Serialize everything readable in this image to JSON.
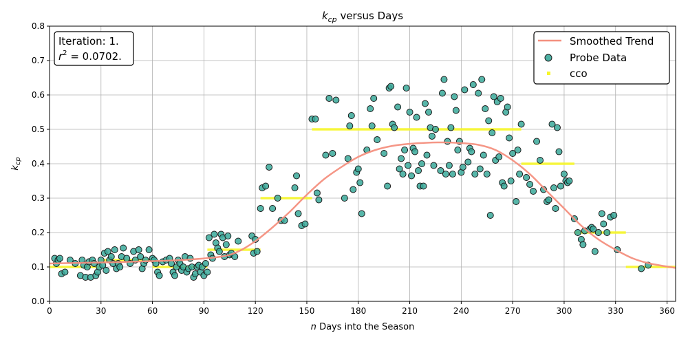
{
  "chart_data": {
    "type": "scatter",
    "title": "versus Days",
    "title_symbol": "k",
    "title_subscript": "cp",
    "xlabel_symbol": "n",
    "xlabel": "Days into the Season",
    "ylabel_symbol": "k",
    "ylabel_subscript": "cp",
    "xlim": [
      0,
      365
    ],
    "ylim": [
      0,
      0.8
    ],
    "xticks": [
      0,
      30,
      60,
      90,
      120,
      150,
      180,
      210,
      240,
      270,
      300,
      330,
      360
    ],
    "yticks": [
      0.0,
      0.1,
      0.2,
      0.3,
      0.4,
      0.5,
      0.6,
      0.7,
      0.8
    ],
    "xtick_labels": [
      "0",
      "30",
      "60",
      "90",
      "120",
      "150",
      "180",
      "210",
      "240",
      "270",
      "300",
      "330",
      "360"
    ],
    "ytick_labels": [
      "0.0",
      "0.1",
      "0.2",
      "0.3",
      "0.4",
      "0.5",
      "0.6",
      "0.7",
      "0.8"
    ],
    "grid": true,
    "legend_position": "top-right",
    "annotation": {
      "line1": "Iteration: 1.",
      "line2_symbol": "r",
      "line2_exponent": "2",
      "line2_rest": " = 0.0702."
    },
    "colors": {
      "trend": "#f4907f",
      "probe_fill": "#3aa99a",
      "probe_edge": "#1b1b1b",
      "cco": "#f7f72a",
      "grid": "#b0b0b0"
    },
    "series": [
      {
        "name": "Smoothed Trend",
        "kind": "line",
        "x": [
          0,
          20,
          40,
          60,
          80,
          100,
          110,
          120,
          130,
          140,
          150,
          160,
          170,
          180,
          190,
          200,
          210,
          220,
          230,
          240,
          250,
          260,
          270,
          280,
          290,
          300,
          310,
          320,
          330,
          340,
          350,
          365
        ],
        "y": [
          0.11,
          0.112,
          0.114,
          0.117,
          0.121,
          0.13,
          0.145,
          0.175,
          0.215,
          0.26,
          0.31,
          0.355,
          0.39,
          0.42,
          0.44,
          0.452,
          0.458,
          0.461,
          0.462,
          0.46,
          0.455,
          0.44,
          0.41,
          0.37,
          0.32,
          0.27,
          0.22,
          0.18,
          0.15,
          0.125,
          0.11,
          0.097
        ]
      },
      {
        "name": "Probe Data",
        "kind": "scatter",
        "points": [
          [
            3,
            0.125
          ],
          [
            4,
            0.11
          ],
          [
            5,
            0.12
          ],
          [
            6,
            0.125
          ],
          [
            7,
            0.08
          ],
          [
            9,
            0.085
          ],
          [
            12,
            0.12
          ],
          [
            15,
            0.11
          ],
          [
            18,
            0.075
          ],
          [
            19,
            0.12
          ],
          [
            20,
            0.105
          ],
          [
            21,
            0.07
          ],
          [
            22,
            0.1
          ],
          [
            23,
            0.115
          ],
          [
            24,
            0.07
          ],
          [
            25,
            0.12
          ],
          [
            26,
            0.11
          ],
          [
            27,
            0.075
          ],
          [
            28,
            0.085
          ],
          [
            29,
            0.1
          ],
          [
            30,
            0.12
          ],
          [
            31,
            0.105
          ],
          [
            32,
            0.14
          ],
          [
            33,
            0.09
          ],
          [
            34,
            0.145
          ],
          [
            35,
            0.12
          ],
          [
            36,
            0.13
          ],
          [
            37,
            0.11
          ],
          [
            38,
            0.15
          ],
          [
            39,
            0.095
          ],
          [
            40,
            0.11
          ],
          [
            41,
            0.1
          ],
          [
            42,
            0.13
          ],
          [
            43,
            0.155
          ],
          [
            45,
            0.125
          ],
          [
            47,
            0.11
          ],
          [
            49,
            0.145
          ],
          [
            50,
            0.12
          ],
          [
            52,
            0.15
          ],
          [
            53,
            0.13
          ],
          [
            54,
            0.095
          ],
          [
            55,
            0.11
          ],
          [
            56,
            0.12
          ],
          [
            58,
            0.15
          ],
          [
            60,
            0.125
          ],
          [
            61,
            0.12
          ],
          [
            62,
            0.11
          ],
          [
            63,
            0.085
          ],
          [
            64,
            0.075
          ],
          [
            66,
            0.115
          ],
          [
            68,
            0.12
          ],
          [
            70,
            0.125
          ],
          [
            71,
            0.11
          ],
          [
            72,
            0.085
          ],
          [
            73,
            0.075
          ],
          [
            74,
            0.1
          ],
          [
            75,
            0.12
          ],
          [
            76,
            0.11
          ],
          [
            77,
            0.09
          ],
          [
            78,
            0.1
          ],
          [
            79,
            0.13
          ],
          [
            80,
            0.085
          ],
          [
            81,
            0.095
          ],
          [
            82,
            0.125
          ],
          [
            83,
            0.1
          ],
          [
            84,
            0.07
          ],
          [
            85,
            0.08
          ],
          [
            86,
            0.1
          ],
          [
            87,
            0.105
          ],
          [
            88,
            0.085
          ],
          [
            89,
            0.1
          ],
          [
            90,
            0.075
          ],
          [
            91,
            0.11
          ],
          [
            92,
            0.085
          ],
          [
            93,
            0.185
          ],
          [
            94,
            0.135
          ],
          [
            95,
            0.125
          ],
          [
            96,
            0.195
          ],
          [
            97,
            0.17
          ],
          [
            98,
            0.155
          ],
          [
            99,
            0.145
          ],
          [
            100,
            0.195
          ],
          [
            101,
            0.185
          ],
          [
            102,
            0.13
          ],
          [
            103,
            0.165
          ],
          [
            104,
            0.19
          ],
          [
            105,
            0.135
          ],
          [
            106,
            0.14
          ],
          [
            108,
            0.13
          ],
          [
            110,
            0.175
          ],
          [
            118,
            0.19
          ],
          [
            119,
            0.14
          ],
          [
            120,
            0.18
          ],
          [
            121,
            0.145
          ],
          [
            123,
            0.27
          ],
          [
            124,
            0.33
          ],
          [
            126,
            0.335
          ],
          [
            128,
            0.39
          ],
          [
            130,
            0.27
          ],
          [
            133,
            0.3
          ],
          [
            135,
            0.235
          ],
          [
            137,
            0.235
          ],
          [
            143,
            0.33
          ],
          [
            144,
            0.365
          ],
          [
            145,
            0.255
          ],
          [
            147,
            0.22
          ],
          [
            149,
            0.225
          ],
          [
            153,
            0.53
          ],
          [
            155,
            0.53
          ],
          [
            156,
            0.315
          ],
          [
            157,
            0.295
          ],
          [
            161,
            0.425
          ],
          [
            163,
            0.59
          ],
          [
            165,
            0.43
          ],
          [
            167,
            0.585
          ],
          [
            172,
            0.3
          ],
          [
            174,
            0.415
          ],
          [
            175,
            0.51
          ],
          [
            176,
            0.54
          ],
          [
            177,
            0.325
          ],
          [
            179,
            0.375
          ],
          [
            180,
            0.385
          ],
          [
            181,
            0.345
          ],
          [
            182,
            0.255
          ],
          [
            185,
            0.44
          ],
          [
            187,
            0.56
          ],
          [
            188,
            0.51
          ],
          [
            189,
            0.59
          ],
          [
            191,
            0.47
          ],
          [
            195,
            0.43
          ],
          [
            197,
            0.335
          ],
          [
            198,
            0.62
          ],
          [
            199,
            0.625
          ],
          [
            200,
            0.515
          ],
          [
            201,
            0.505
          ],
          [
            203,
            0.565
          ],
          [
            204,
            0.385
          ],
          [
            205,
            0.415
          ],
          [
            206,
            0.37
          ],
          [
            207,
            0.44
          ],
          [
            208,
            0.62
          ],
          [
            209,
            0.395
          ],
          [
            210,
            0.55
          ],
          [
            211,
            0.365
          ],
          [
            212,
            0.445
          ],
          [
            213,
            0.435
          ],
          [
            214,
            0.535
          ],
          [
            215,
            0.38
          ],
          [
            216,
            0.335
          ],
          [
            217,
            0.4
          ],
          [
            218,
            0.335
          ],
          [
            219,
            0.575
          ],
          [
            220,
            0.425
          ],
          [
            221,
            0.55
          ],
          [
            222,
            0.505
          ],
          [
            223,
            0.48
          ],
          [
            224,
            0.395
          ],
          [
            225,
            0.5
          ],
          [
            228,
            0.38
          ],
          [
            229,
            0.605
          ],
          [
            230,
            0.645
          ],
          [
            231,
            0.37
          ],
          [
            232,
            0.465
          ],
          [
            233,
            0.395
          ],
          [
            234,
            0.505
          ],
          [
            235,
            0.37
          ],
          [
            236,
            0.595
          ],
          [
            237,
            0.555
          ],
          [
            238,
            0.44
          ],
          [
            239,
            0.465
          ],
          [
            240,
            0.375
          ],
          [
            241,
            0.39
          ],
          [
            242,
            0.615
          ],
          [
            244,
            0.405
          ],
          [
            245,
            0.445
          ],
          [
            246,
            0.435
          ],
          [
            247,
            0.63
          ],
          [
            248,
            0.37
          ],
          [
            250,
            0.605
          ],
          [
            251,
            0.385
          ],
          [
            252,
            0.645
          ],
          [
            253,
            0.425
          ],
          [
            254,
            0.56
          ],
          [
            255,
            0.37
          ],
          [
            256,
            0.525
          ],
          [
            257,
            0.25
          ],
          [
            258,
            0.49
          ],
          [
            259,
            0.595
          ],
          [
            260,
            0.41
          ],
          [
            261,
            0.58
          ],
          [
            262,
            0.42
          ],
          [
            263,
            0.59
          ],
          [
            264,
            0.345
          ],
          [
            265,
            0.335
          ],
          [
            266,
            0.55
          ],
          [
            267,
            0.565
          ],
          [
            268,
            0.475
          ],
          [
            269,
            0.35
          ],
          [
            270,
            0.43
          ],
          [
            272,
            0.29
          ],
          [
            273,
            0.44
          ],
          [
            274,
            0.37
          ],
          [
            275,
            0.515
          ],
          [
            278,
            0.36
          ],
          [
            280,
            0.34
          ],
          [
            282,
            0.32
          ],
          [
            284,
            0.465
          ],
          [
            286,
            0.41
          ],
          [
            288,
            0.325
          ],
          [
            290,
            0.29
          ],
          [
            291,
            0.295
          ],
          [
            293,
            0.515
          ],
          [
            294,
            0.33
          ],
          [
            295,
            0.27
          ],
          [
            296,
            0.505
          ],
          [
            297,
            0.435
          ],
          [
            298,
            0.335
          ],
          [
            300,
            0.37
          ],
          [
            301,
            0.35
          ],
          [
            302,
            0.345
          ],
          [
            303,
            0.35
          ],
          [
            306,
            0.24
          ],
          [
            308,
            0.2
          ],
          [
            310,
            0.18
          ],
          [
            311,
            0.165
          ],
          [
            312,
            0.205
          ],
          [
            315,
            0.21
          ],
          [
            316,
            0.215
          ],
          [
            317,
            0.21
          ],
          [
            318,
            0.145
          ],
          [
            320,
            0.2
          ],
          [
            322,
            0.255
          ],
          [
            323,
            0.225
          ],
          [
            325,
            0.2
          ],
          [
            327,
            0.245
          ],
          [
            329,
            0.25
          ],
          [
            331,
            0.15
          ],
          [
            345,
            0.095
          ],
          [
            349,
            0.105
          ]
        ]
      },
      {
        "name": "cco",
        "kind": "steps",
        "segments": [
          [
            0,
            30,
            0.1
          ],
          [
            30,
            60,
            0.12
          ],
          [
            60,
            92,
            0.1
          ],
          [
            92,
            123,
            0.15
          ],
          [
            123,
            153,
            0.3
          ],
          [
            153,
            275,
            0.5
          ],
          [
            275,
            306,
            0.4
          ],
          [
            306,
            336,
            0.2
          ],
          [
            336,
            365,
            0.1
          ]
        ]
      }
    ]
  }
}
